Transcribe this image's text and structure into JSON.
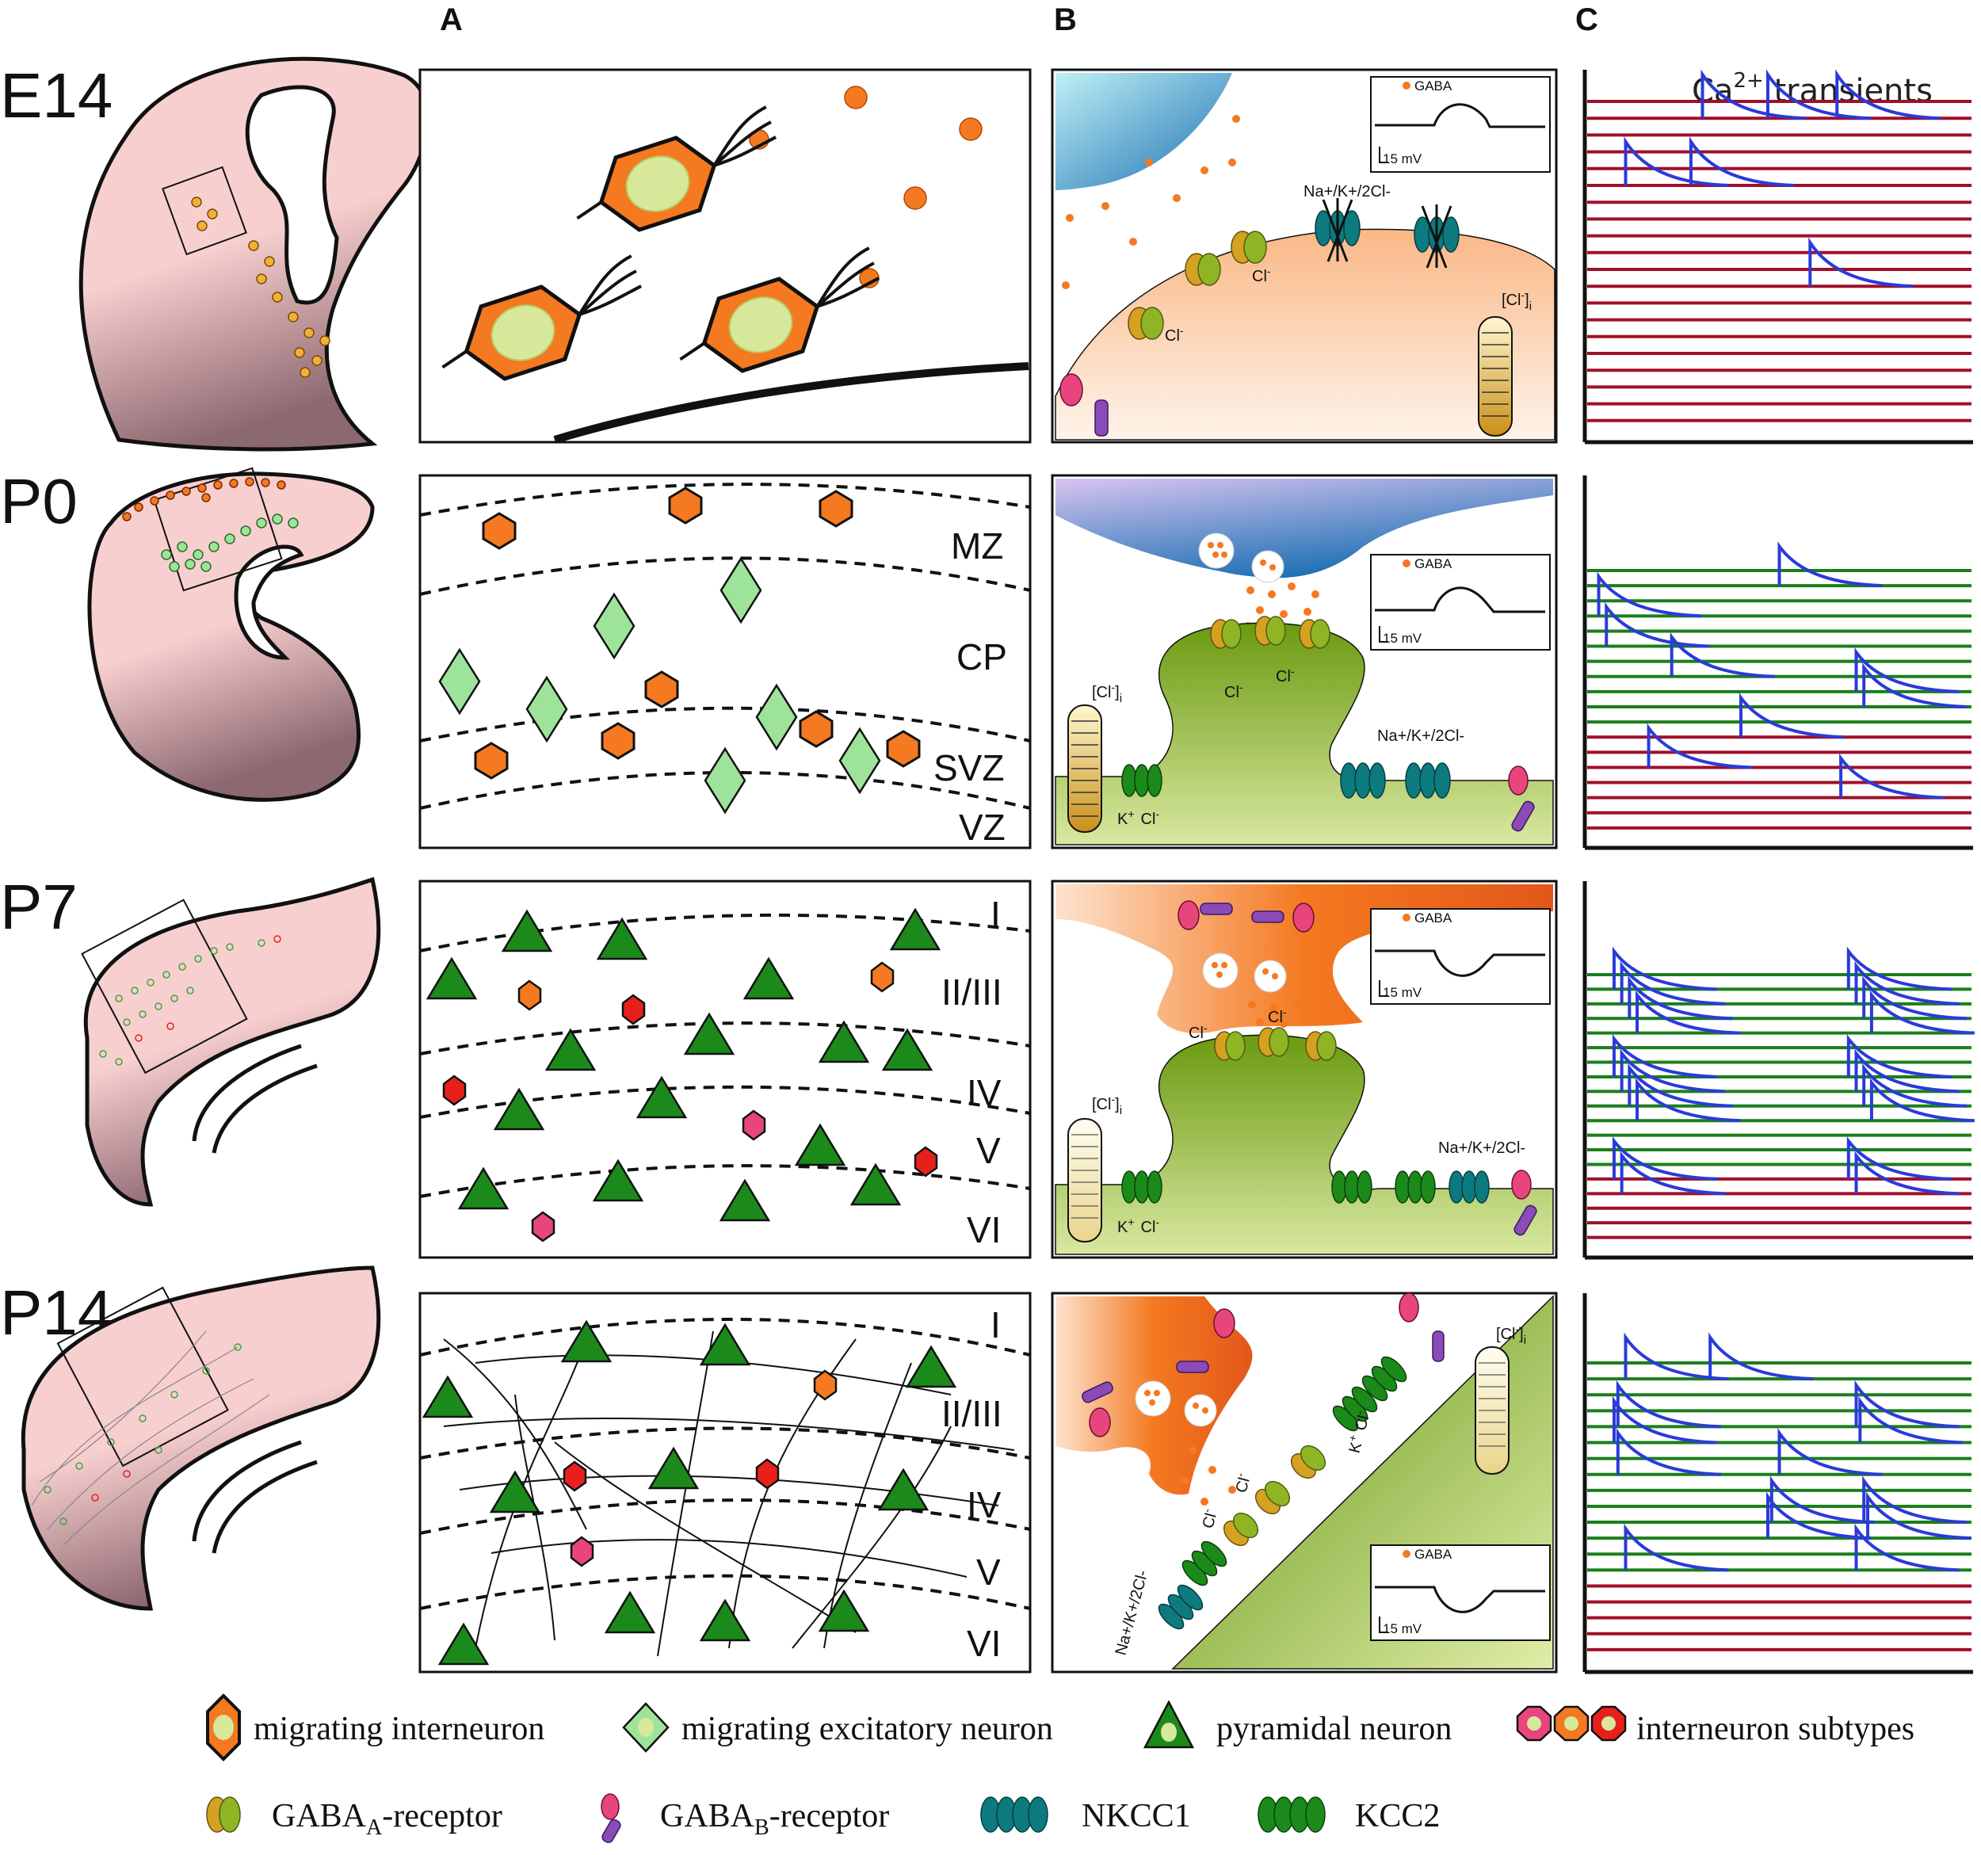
{
  "column_headers": [
    "A",
    "B",
    "C"
  ],
  "stages": [
    "E14",
    "P0",
    "P7",
    "P14"
  ],
  "layers_p0": [
    "MZ",
    "CP",
    "SVZ",
    "VZ"
  ],
  "layers_mature": [
    "I",
    "II/III",
    "IV",
    "V",
    "VI"
  ],
  "ca_title": "Ca",
  "ca_sup": "2+",
  "ca_rest": " transients",
  "gaba": "GABA",
  "scale": "15 mV",
  "ions": {
    "cl": "Cl",
    "cli": "[Cl",
    "cli_sub": "i",
    "nkcc_label": "Na+/K+/2Cl-",
    "k": "K",
    "plus": "+",
    "minus": "-",
    "bracket": "]"
  },
  "legend": {
    "migrating_interneuron": "migrating interneuron",
    "migrating_excitatory": "migrating excitatory neuron",
    "pyramidal": "pyramidal neuron",
    "subtypes": "interneuron subtypes",
    "gabaa_pre": "GABA",
    "gabaa_sub": "A",
    "gabaa_post": "-receptor",
    "gabab_pre": "GABA",
    "gabab_sub": "B",
    "gabab_post": "-receptor",
    "nkcc1": "NKCC1",
    "kcc2": "KCC2"
  },
  "colors": {
    "interneuron_orange": "#f47920",
    "soma_fill": "#d7e89a",
    "excitatory_green": "#9ee39a",
    "pyramidal_green": "#1b8a1b",
    "red": "#e8201c",
    "pink": "#e8457f",
    "brain": "#f8cfcf",
    "synapse_blue": "#1e73b8",
    "dendrite_green": "#8fb524",
    "trace_red": "#a0102a",
    "trace_green": "#1b7f1b",
    "transient_blue": "#2a3bd8",
    "nkcc1": "#0d7a80",
    "kcc2": "#1b8a1b"
  },
  "transients": {
    "E14": {
      "rows": 20,
      "green_rows": 0,
      "events": [
        [
          0.3,
          1
        ],
        [
          0.47,
          1
        ],
        [
          0.65,
          1
        ],
        [
          0.1,
          5
        ],
        [
          0.27,
          5
        ],
        [
          0.58,
          11
        ]
      ]
    },
    "P0": {
      "rows": 18,
      "green_rows": 11,
      "events": [
        [
          0.5,
          1
        ],
        [
          0.03,
          3
        ],
        [
          0.05,
          5
        ],
        [
          0.22,
          7
        ],
        [
          0.7,
          8
        ],
        [
          0.72,
          9
        ],
        [
          0.4,
          11
        ],
        [
          0.16,
          13
        ],
        [
          0.66,
          15
        ]
      ]
    },
    "P7": {
      "rows": 19,
      "green_rows": 14,
      "events": [
        [
          0.07,
          1
        ],
        [
          0.68,
          1
        ],
        [
          0.09,
          2
        ],
        [
          0.7,
          2
        ],
        [
          0.11,
          3
        ],
        [
          0.72,
          3
        ],
        [
          0.13,
          4
        ],
        [
          0.74,
          4
        ],
        [
          0.07,
          7
        ],
        [
          0.68,
          7
        ],
        [
          0.09,
          8
        ],
        [
          0.7,
          8
        ],
        [
          0.11,
          9
        ],
        [
          0.72,
          9
        ],
        [
          0.13,
          10
        ],
        [
          0.74,
          10
        ],
        [
          0.07,
          14
        ],
        [
          0.68,
          14
        ],
        [
          0.09,
          15
        ],
        [
          0.7,
          15
        ]
      ]
    },
    "P14": {
      "rows": 19,
      "green_rows": 14,
      "events": [
        [
          0.1,
          1
        ],
        [
          0.32,
          1
        ],
        [
          0.08,
          4
        ],
        [
          0.7,
          4
        ],
        [
          0.07,
          5
        ],
        [
          0.71,
          5
        ],
        [
          0.08,
          7
        ],
        [
          0.5,
          7
        ],
        [
          0.48,
          10
        ],
        [
          0.47,
          11
        ],
        [
          0.72,
          10
        ],
        [
          0.73,
          11
        ],
        [
          0.1,
          13
        ],
        [
          0.7,
          13
        ]
      ]
    }
  }
}
